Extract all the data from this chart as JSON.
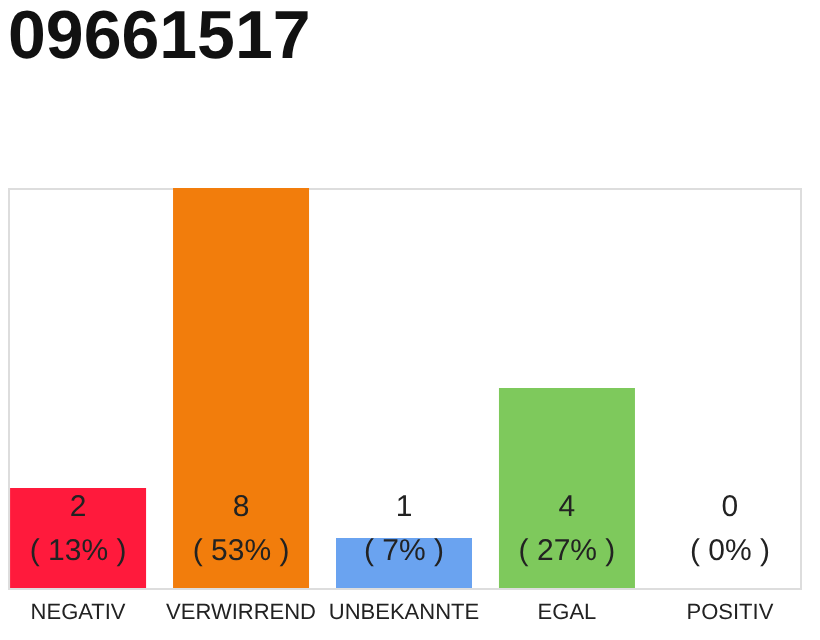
{
  "chart_data": {
    "type": "bar",
    "title": "09661517",
    "categories": [
      "NEGATIV",
      "VERWIRREND",
      "UNBEKANNTE",
      "EGAL",
      "POSITIV"
    ],
    "values": [
      2,
      8,
      1,
      4,
      0
    ],
    "colors": [
      "#ff1a3c",
      "#f27d0c",
      "#6aa3f0",
      "#7ec95c",
      "#cccccc"
    ],
    "value_labels": [
      "2\n( 13% )",
      "8\n( 53% )",
      "1\n( 7% )",
      "4\n( 27% )",
      "0\n( 0% )"
    ],
    "grid": false
  }
}
